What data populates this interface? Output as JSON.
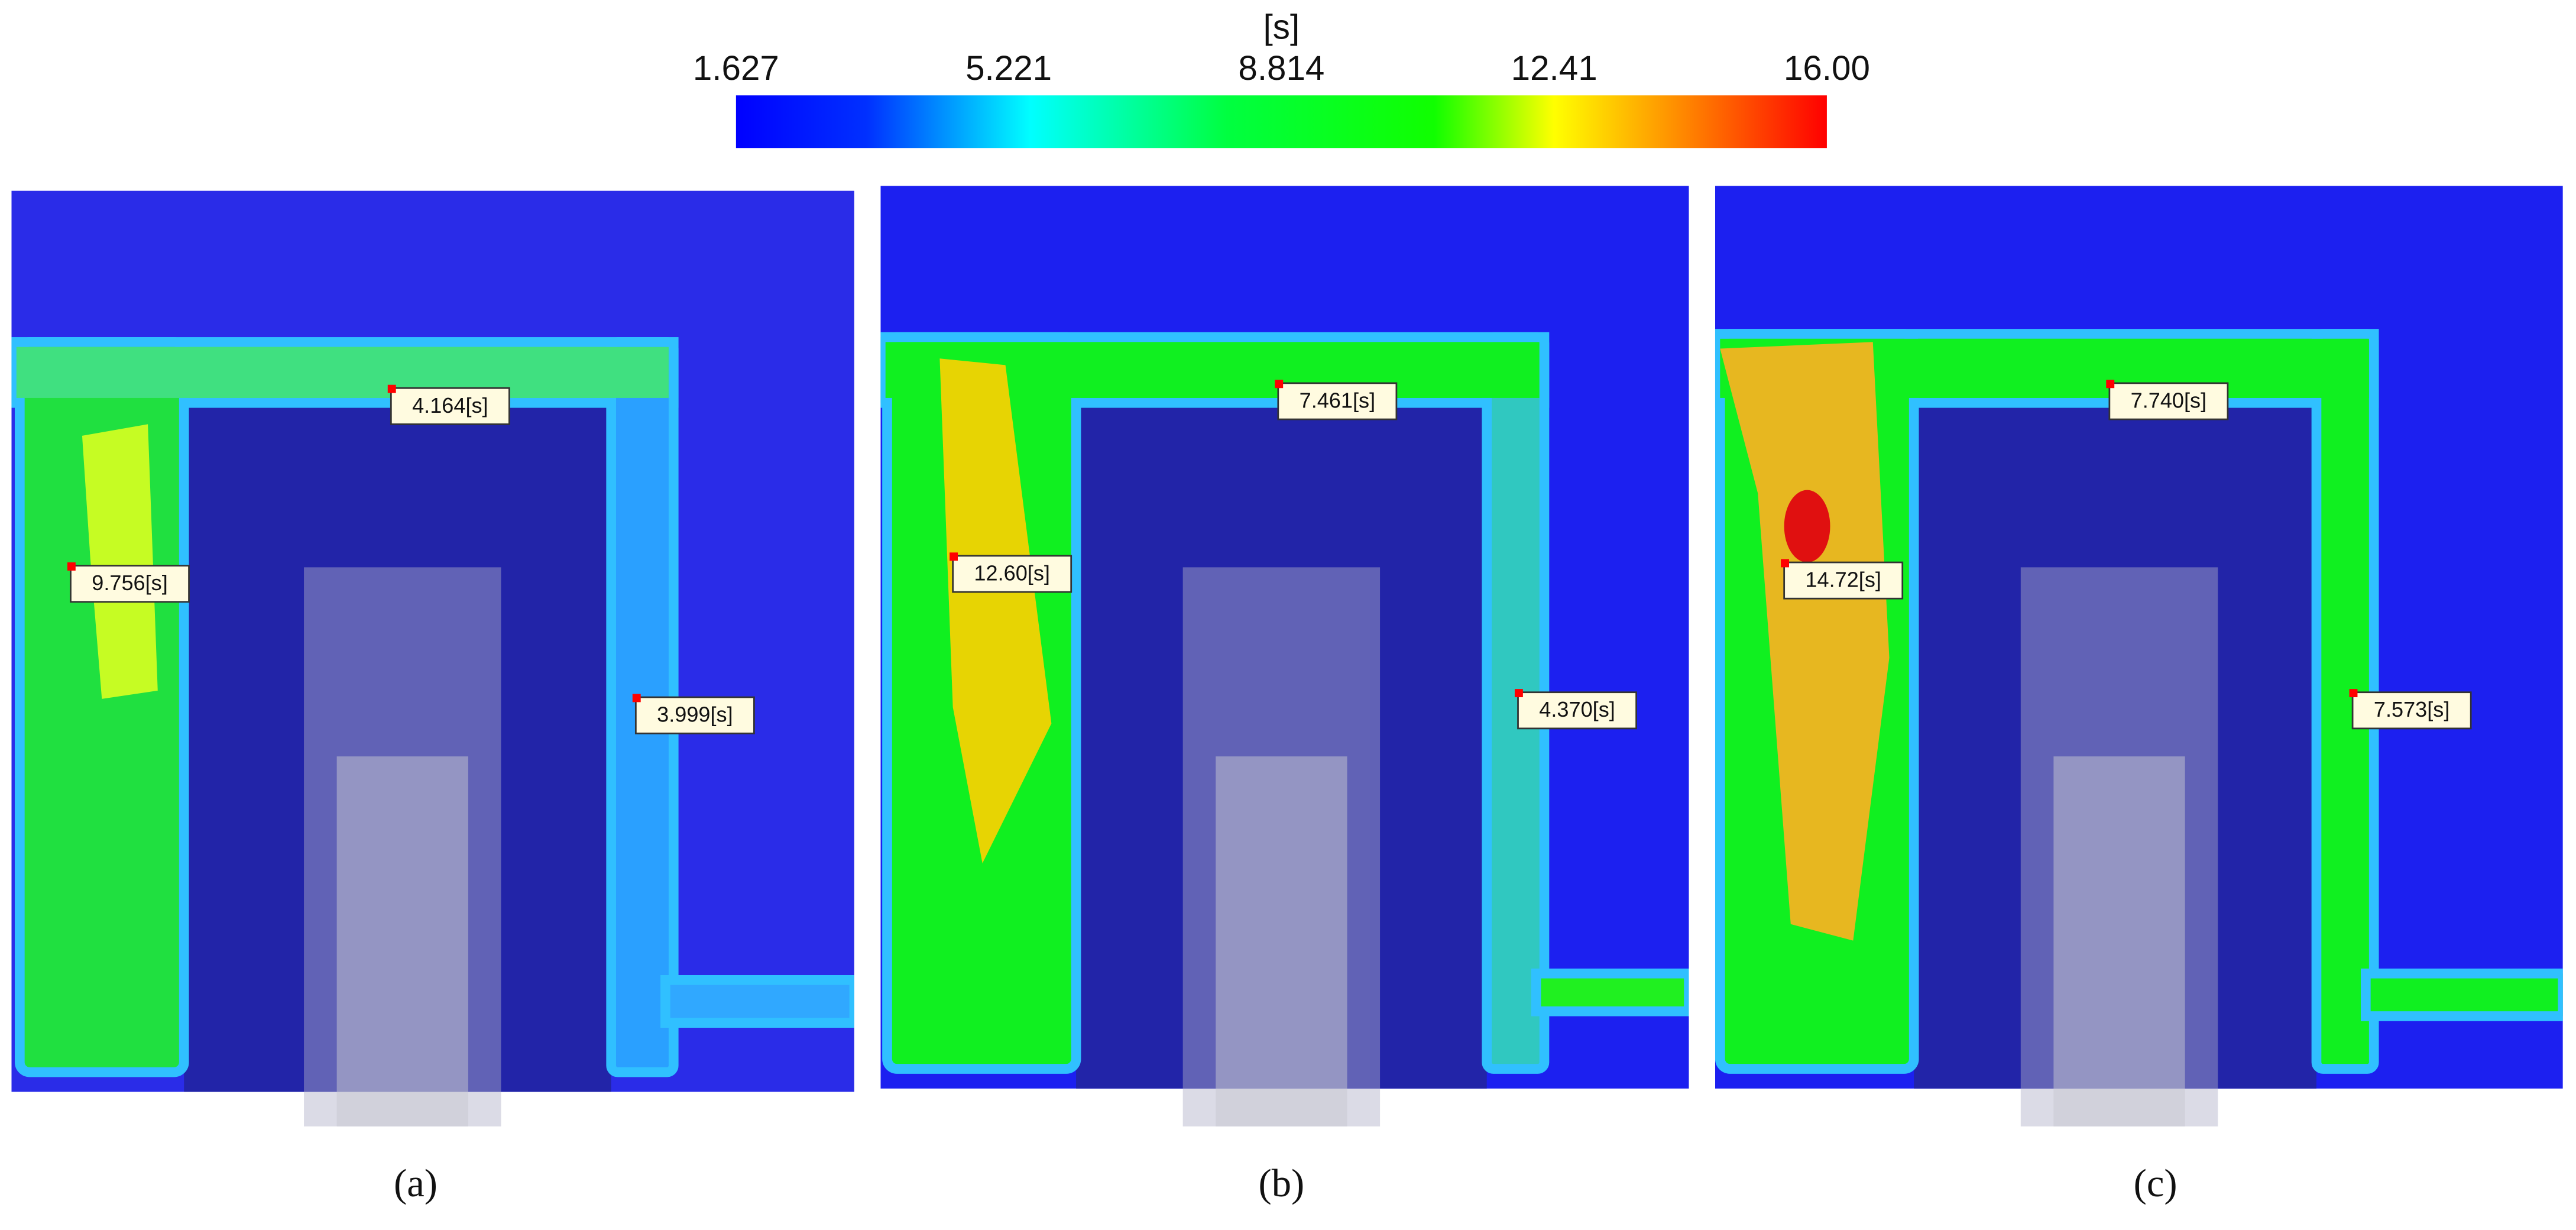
{
  "colorbar": {
    "unit": "[s]",
    "ticks": [
      "1.627",
      "5.221",
      "8.814",
      "12.41",
      "16.00"
    ]
  },
  "panels": [
    {
      "caption": "(a)",
      "probes": [
        "4.164[s]",
        "9.756[s]",
        "3.999[s]"
      ]
    },
    {
      "caption": "(b)",
      "probes": [
        "7.461[s]",
        "12.60[s]",
        "4.370[s]"
      ]
    },
    {
      "caption": "(c)",
      "probes": [
        "7.740[s]",
        "14.72[s]",
        "7.573[s]"
      ]
    }
  ]
}
